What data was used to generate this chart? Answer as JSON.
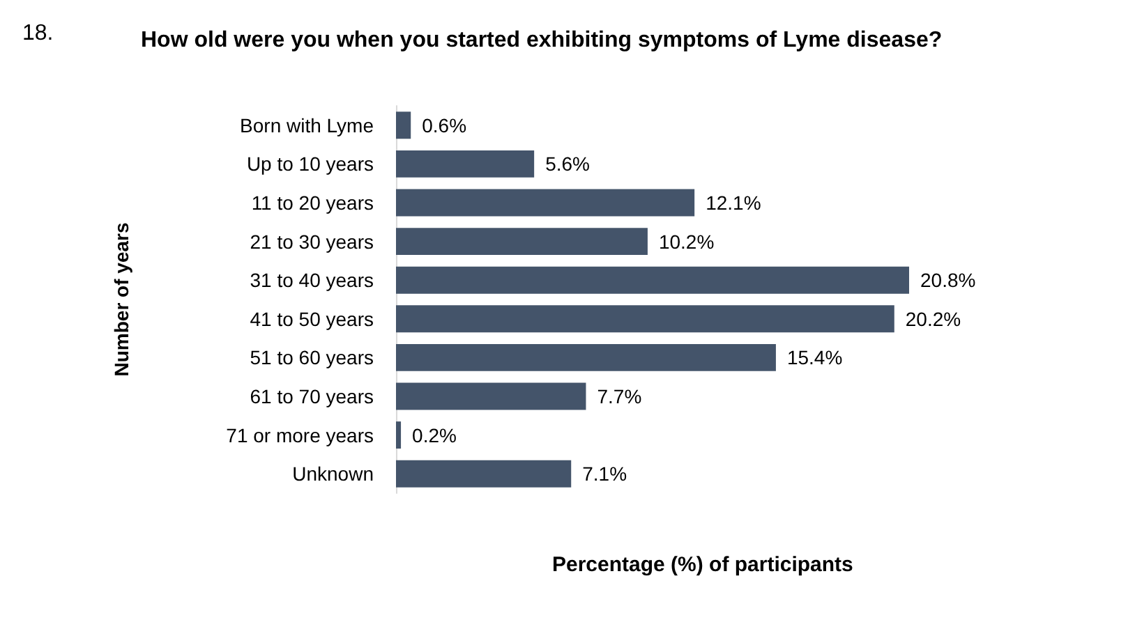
{
  "chart_data": {
    "type": "bar",
    "orientation": "horizontal",
    "title": "How old were you when you started exhibiting symptoms of Lyme disease?",
    "annotations": [
      "18."
    ],
    "xlabel": "Percentage (%) of participants",
    "ylabel": "Number of years",
    "categories": [
      "Born with Lyme",
      "Up to 10 years",
      "11 to 20 years",
      "21 to 30 years",
      "31 to 40 years",
      "41 to 50 years",
      "51 to 60 years",
      "61 to 70 years",
      "71 or more years",
      "Unknown"
    ],
    "values": [
      0.6,
      5.6,
      12.1,
      10.2,
      20.8,
      20.2,
      15.4,
      7.7,
      0.2,
      7.1
    ],
    "value_labels": [
      "0.6%",
      "5.6%",
      "12.1%",
      "10.2%",
      "20.8%",
      "20.2%",
      "15.4%",
      "7.7%",
      "0.2%",
      "7.1%"
    ],
    "color": "#44546a"
  }
}
